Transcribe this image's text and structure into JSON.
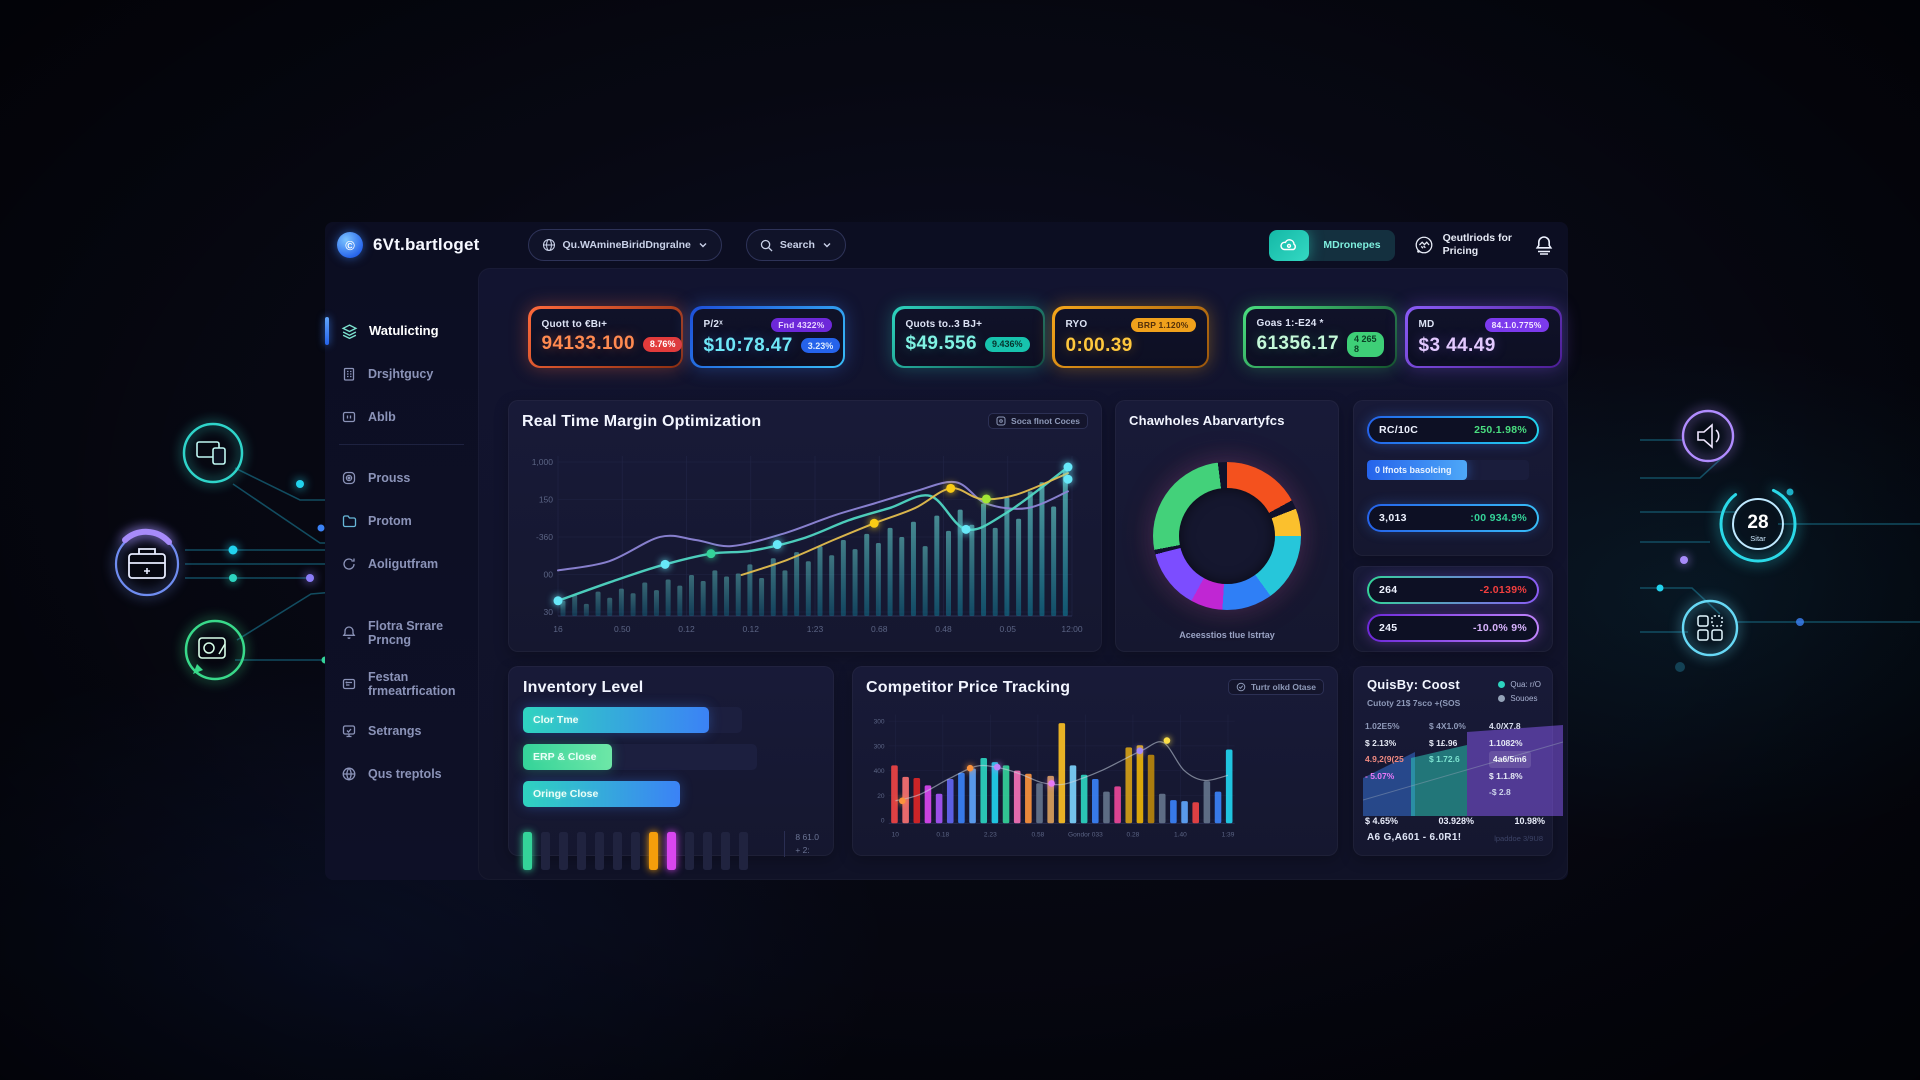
{
  "brand": {
    "name": "6Vt.bartloget"
  },
  "header": {
    "market_dropdown": "Qu.WAmineBiridDngralne",
    "search_label": "Search",
    "primary_button": "MDronepes",
    "methods_line1": "Qeutlriods for",
    "methods_line2": "Pricing"
  },
  "sidebar": {
    "items": [
      {
        "label": "Watulicting",
        "active": true
      },
      {
        "label": "Drsjhtgucy"
      },
      {
        "label": "Ablb"
      },
      {
        "label": "Prouss"
      },
      {
        "label": "Protom"
      },
      {
        "label": "Aoligutfram"
      },
      {
        "label": "Flotra Srrare\nPrncng"
      },
      {
        "label": "Festan\nfrmeatrfication"
      },
      {
        "label": "Setrangs"
      },
      {
        "label": "Qus treptols"
      }
    ]
  },
  "tickers": [
    {
      "label": "Quott to €Bı+",
      "value": "94133.100",
      "badge": "8.76%",
      "colors": {
        "b1": "#ff6a3c",
        "b2": "#8a2d10",
        "glow": "rgba(255,106,60,0.35)",
        "value": "#ff8a50",
        "badge_bg": "#e23b3b",
        "badge_fg": "#ffffff"
      }
    },
    {
      "label": "P/2ˣ",
      "top_badge": "Fnd 4322%",
      "value": "$10:78.47",
      "badge": "3.23%",
      "colors": {
        "b1": "#1d4ed8",
        "b2": "#38bdf8",
        "glow": "rgba(59,130,246,0.35)",
        "value": "#6ee7f7",
        "badge_bg": "#2563eb",
        "badge_fg": "#dbeafe",
        "top_bg": "#6d28d9",
        "top_fg": "#e9d5ff"
      }
    },
    {
      "label": "Quots to..3 BJ+",
      "value": "$49.556",
      "badge": "9.436%",
      "colors": {
        "b1": "#2dd4bf",
        "b2": "#0f4a44",
        "glow": "rgba(45,212,191,0.3)",
        "value": "#7ff3e3",
        "badge_bg": "#17c3ad",
        "badge_fg": "#06342e"
      }
    },
    {
      "label": "RYO",
      "top_badge": "BRP 1.120%",
      "value": "0:00.39",
      "colors": {
        "b1": "#f6a71b",
        "b2": "#9a560c",
        "glow": "rgba(246,167,27,0.35)",
        "value": "#ffc83d",
        "top_bg": "#f0a11c",
        "top_fg": "#53300a"
      }
    },
    {
      "label": "Goas 1:-E24 *",
      "value": "61356.17",
      "badge": "4 265 8",
      "colors": {
        "b1": "#4ade80",
        "b2": "#14532d",
        "glow": "rgba(74,222,128,0.3)",
        "value": "#c4f9d9",
        "badge_bg": "#3ecf77",
        "badge_fg": "#0b4226"
      }
    },
    {
      "label": "MD",
      "top_badge": "84.1.0.775%",
      "value": "$3 44.49",
      "colors": {
        "b1": "#8b5cf6",
        "b2": "#4c1d95",
        "glow": "rgba(139,92,246,0.35)",
        "value": "#e3c9ff",
        "top_bg": "#7c3aed",
        "top_fg": "#f3e8ff"
      }
    }
  ],
  "panels": {
    "margin": {
      "title": "Real Time Margin Optimization",
      "badge": "Soca flnot Coces"
    },
    "donut": {
      "title": "Chawholes Abarvartyfcs",
      "caption": "Aceesstios tlue lstrtay"
    },
    "stats": {
      "pill1_left": "RC/10C",
      "pill1_right": "250.1.98%",
      "progress_label": "0 lfnots basolcing",
      "progress_pct": 62,
      "pill2_left": "3,013",
      "pill2_right": ":00 934.9%",
      "pill3_left": "264",
      "pill3_right": "-2.0139%",
      "pill4_left": "245",
      "pill4_right": "-10.0% 9%"
    },
    "inventory": {
      "title": "Inventory Level",
      "caption": "8 61.0\n+ 2:"
    },
    "competitor": {
      "title": "Competitor Price Tracking",
      "badge": "Turtr olkd Otase"
    },
    "quisby": {
      "title": "QuisBy: Coost",
      "legend": [
        "Qua: r/O",
        "Souoes"
      ],
      "subtitle": "Cutoty 21$ 7sco +(SOS",
      "footer": "A6 G,A601 - 6.0R1!",
      "note": "lpaddoe 3/9U8"
    }
  },
  "decor": {
    "ring_value": "28",
    "ring_label": "Sitar"
  },
  "chart_data": [
    {
      "id": "margin",
      "type": "line",
      "title": "Real Time Margin Optimization",
      "y_ticks": [
        "1,000",
        "150",
        "-360",
        "00",
        "30"
      ],
      "x_ticks": [
        "16",
        "0.50",
        "0.12",
        "0.12",
        "1:23",
        "0.68",
        "0.48",
        "0.05",
        "12:00"
      ],
      "bars": [
        10,
        14,
        8,
        16,
        12,
        18,
        15,
        22,
        17,
        24,
        20,
        27,
        23,
        30,
        26,
        28,
        34,
        25,
        38,
        30,
        42,
        36,
        46,
        40,
        50,
        44,
        54,
        48,
        58,
        52,
        62,
        46,
        66,
        56,
        70,
        60,
        74,
        58,
        78,
        64,
        82,
        88,
        72,
        96
      ],
      "series": [
        {
          "name": "trend-purple",
          "color": "#8d85d6",
          "width": 2,
          "points": [
            [
              0,
              30
            ],
            [
              10,
              36
            ],
            [
              20,
              52
            ],
            [
              27,
              50
            ],
            [
              34,
              46
            ],
            [
              44,
              54
            ],
            [
              54,
              66
            ],
            [
              62,
              74
            ],
            [
              70,
              82
            ],
            [
              78,
              88
            ],
            [
              84,
              74
            ],
            [
              92,
              71
            ],
            [
              100,
              82
            ]
          ]
        },
        {
          "name": "trend-teal",
          "color": "#4fd6c3",
          "width": 2.4,
          "points": [
            [
              0,
              10
            ],
            [
              10,
              22
            ],
            [
              20,
              33
            ],
            [
              30,
              41
            ],
            [
              38,
              43
            ],
            [
              48,
              51
            ],
            [
              57,
              63
            ],
            [
              65,
              71
            ],
            [
              73,
              79
            ],
            [
              80,
              57
            ],
            [
              88,
              68
            ],
            [
              100,
              98
            ]
          ]
        },
        {
          "name": "trend-yellow",
          "color": "#e3bd4e",
          "width": 2,
          "points": [
            [
              36,
              27
            ],
            [
              45,
              37
            ],
            [
              54,
              50
            ],
            [
              62,
              61
            ],
            [
              70,
              71
            ],
            [
              77,
              84
            ],
            [
              83,
              77
            ],
            [
              90,
              80
            ],
            [
              100,
              94
            ]
          ]
        }
      ],
      "dots": [
        [
          0,
          10,
          "#67e8f9"
        ],
        [
          21,
          34,
          "#67e8f9"
        ],
        [
          30,
          41,
          "#34d399"
        ],
        [
          43,
          47,
          "#67e8f9"
        ],
        [
          62,
          61,
          "#facc15"
        ],
        [
          77,
          84,
          "#facc15"
        ],
        [
          84,
          77,
          "#a3e635"
        ],
        [
          80,
          57,
          "#67e8f9"
        ],
        [
          100,
          98,
          "#67e8f9"
        ],
        [
          100,
          90,
          "#67e8f9"
        ]
      ]
    },
    {
      "id": "donut",
      "type": "pie",
      "title": "Chawholes Abarvartyfcs",
      "segments": [
        [
          17,
          "#f4511e"
        ],
        [
          2,
          "#10122b"
        ],
        [
          6,
          "#fbc02d"
        ],
        [
          15,
          "#26c6da"
        ],
        [
          11,
          "#2f7ff6"
        ],
        [
          7,
          "#c026d3"
        ],
        [
          13,
          "#7c4dff"
        ],
        [
          1,
          "#10122b"
        ],
        [
          26,
          "#43d17a"
        ],
        [
          2,
          "#10122b"
        ]
      ]
    },
    {
      "id": "inventory",
      "type": "bar",
      "title": "Inventory Level",
      "bars": [
        {
          "label": "Clor Tme",
          "track": 74,
          "fill": 85,
          "style": "blue"
        },
        {
          "label": "ERP & Close",
          "track": 79,
          "fill": 38,
          "style": "green"
        },
        {
          "label": "Oringe Close",
          "track": 53,
          "fill": 100,
          "style": "blue"
        }
      ],
      "ticks": [
        "#34d399",
        "dim",
        "dim",
        "dim",
        "dim",
        "dim",
        "dim",
        "#f59e0b",
        "#d946ef",
        "dim",
        "dim",
        "dim",
        "dim"
      ]
    },
    {
      "id": "competitor",
      "type": "bar",
      "title": "Competitor Price Tracking",
      "y_ticks": [
        "300",
        "300",
        "400",
        "20",
        "0"
      ],
      "x_ticks": [
        "10",
        "0.18",
        "2.23",
        "0.58",
        "Gondor 033",
        "0.28",
        "1.40",
        "1:39"
      ],
      "bars": [
        [
          55,
          "#ef4444"
        ],
        [
          44,
          "#f87171"
        ],
        [
          43,
          "#dc2626"
        ],
        [
          36,
          "#d946ef"
        ],
        [
          28,
          "#a855f7"
        ],
        [
          42,
          "#6366f1"
        ],
        [
          48,
          "#3b82f6"
        ],
        [
          52,
          "#60a5fa"
        ],
        [
          62,
          "#2dd4bf"
        ],
        [
          58,
          "#22d3ee"
        ],
        [
          55,
          "#34d399"
        ],
        [
          50,
          "#f472b6"
        ],
        [
          47,
          "#fb923c"
        ],
        [
          38,
          "#64748b"
        ],
        [
          45,
          "#d9a05b"
        ],
        [
          95,
          "#fbbf24"
        ],
        [
          55,
          "#7dd3fc"
        ],
        [
          46,
          "#2dd4bf"
        ],
        [
          42,
          "#3b82f6"
        ],
        [
          30,
          "#64748b"
        ],
        [
          35,
          "#ec4899"
        ],
        [
          72,
          "#d4a017"
        ],
        [
          74,
          "#eab308"
        ],
        [
          65,
          "#b8860b"
        ],
        [
          28,
          "#64748b"
        ],
        [
          22,
          "#3b82f6"
        ],
        [
          21,
          "#60a5fa"
        ],
        [
          20,
          "#ef4444"
        ],
        [
          40,
          "#64748b"
        ],
        [
          30,
          "#3b82f6"
        ],
        [
          70,
          "#22d3ee"
        ]
      ],
      "line": [
        [
          2,
          22
        ],
        [
          9,
          28
        ],
        [
          18,
          44
        ],
        [
          26,
          56
        ],
        [
          33,
          54
        ],
        [
          39,
          48
        ],
        [
          45,
          40
        ],
        [
          51,
          38
        ],
        [
          57,
          44
        ],
        [
          63,
          52
        ],
        [
          69,
          62
        ],
        [
          75,
          72
        ],
        [
          81,
          79
        ],
        [
          87,
          52
        ],
        [
          93,
          42
        ],
        [
          100,
          47
        ]
      ],
      "dots": [
        [
          4,
          22,
          "#fb923c"
        ],
        [
          24,
          54,
          "#fb923c"
        ],
        [
          32,
          55,
          "#c084fc"
        ],
        [
          48,
          39,
          "#e879f9"
        ],
        [
          74,
          71,
          "#a78bfa"
        ],
        [
          82,
          81,
          "#fde047"
        ]
      ]
    },
    {
      "id": "quisby",
      "type": "area",
      "title": "QuisBy: Coost",
      "areas": [
        {
          "points": [
            [
              0,
              66
            ],
            [
              52,
              40
            ],
            [
              52,
              104
            ],
            [
              0,
              104
            ]
          ],
          "fill": "#3b82f6",
          "opacity": 0.45
        },
        {
          "points": [
            [
              48,
              46
            ],
            [
              104,
              33
            ],
            [
              104,
              104
            ],
            [
              48,
              104
            ]
          ],
          "fill": "#2dd4bf",
          "opacity": 0.5
        },
        {
          "points": [
            [
              104,
              20
            ],
            [
              200,
              13
            ],
            [
              200,
              104
            ],
            [
              104,
              104
            ]
          ],
          "fill": "#8b5cf6",
          "opacity": 0.5
        }
      ],
      "line": [
        [
          0,
          88
        ],
        [
          200,
          30
        ]
      ],
      "columns": [
        [
          {
            "t": "1.02E5%",
            "c": "#8e99b8"
          },
          {
            "t": "$ 2.13%",
            "c": "#e6eaf5"
          },
          {
            "t": "4.9,2(9(25",
            "c": "#f28b82"
          },
          {
            "t": "- 5.07%",
            "c": "#e879f9"
          }
        ],
        [
          {
            "t": "$ 4X1.0%",
            "c": "#8e99b8"
          },
          {
            "t": "$ 1£.96",
            "c": "#e6eaf5"
          },
          {
            "t": "$ 1.72.6",
            "c": "#7de3d0"
          }
        ],
        [
          {
            "t": "4.0/X7.8",
            "c": "#d9def0"
          },
          {
            "t": "1.1082%",
            "c": "#e6eaf5"
          },
          {
            "t": "4a6/5m6",
            "c": "#f1f5f9",
            "hl": true
          },
          {
            "t": "$ 1.1.8%",
            "c": "#e6eaf5"
          },
          {
            "t": "-$ 2.8",
            "c": "#cbd2ea"
          }
        ]
      ],
      "totals": [
        "$ 4.65%",
        "03.928%",
        "10.98%"
      ]
    }
  ]
}
